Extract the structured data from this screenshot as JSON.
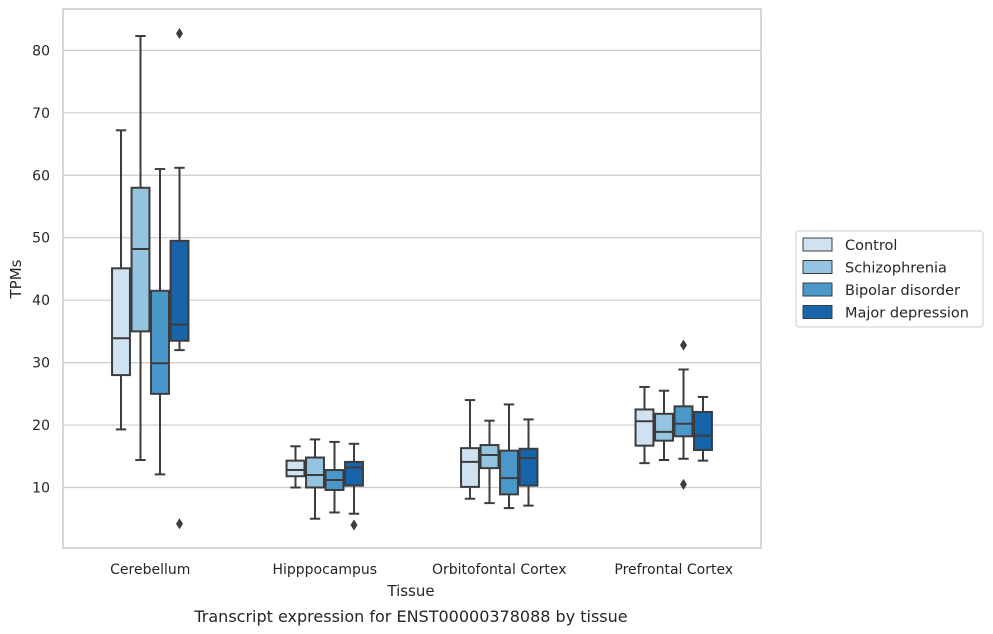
{
  "chart_data": {
    "type": "boxplot",
    "title": "",
    "xlabel": "Tissue",
    "ylabel": "TPMs",
    "caption": "Transcript expression for ENST00000378088 by tissue",
    "ylim": [
      0,
      86
    ],
    "yticks": [
      10,
      20,
      30,
      40,
      50,
      60,
      70,
      80
    ],
    "grid": true,
    "legend_placement": "right",
    "categories": [
      "Cerebellum",
      "Hipppocampus",
      "Orbitofontal Cortex",
      "Prefrontal Cortex"
    ],
    "series": [
      {
        "name": "Control",
        "color": "#d0e1f2",
        "boxes": [
          {
            "whislo": 19.3,
            "q1": 28.0,
            "med": 33.9,
            "q3": 45.1,
            "whishi": 67.2,
            "fliers": []
          },
          {
            "whislo": 10.0,
            "q1": 11.8,
            "med": 12.8,
            "q3": 14.3,
            "whishi": 16.6,
            "fliers": []
          },
          {
            "whislo": 8.2,
            "q1": 10.1,
            "med": 14.1,
            "q3": 16.3,
            "whishi": 24.0,
            "fliers": []
          },
          {
            "whislo": 13.9,
            "q1": 16.7,
            "med": 20.6,
            "q3": 22.5,
            "whishi": 26.1,
            "fliers": []
          }
        ]
      },
      {
        "name": "Schizophrenia",
        "color": "#94c4df",
        "boxes": [
          {
            "whislo": 14.4,
            "q1": 35.0,
            "med": 48.2,
            "q3": 58.0,
            "whishi": 82.3,
            "fliers": []
          },
          {
            "whislo": 5.0,
            "q1": 10.0,
            "med": 12.0,
            "q3": 14.8,
            "whishi": 17.7,
            "fliers": []
          },
          {
            "whislo": 7.5,
            "q1": 13.1,
            "med": 15.2,
            "q3": 16.8,
            "whishi": 20.7,
            "fliers": []
          },
          {
            "whislo": 14.4,
            "q1": 17.5,
            "med": 18.9,
            "q3": 21.8,
            "whishi": 25.5,
            "fliers": []
          }
        ]
      },
      {
        "name": "Bipolar disorder",
        "color": "#4a98c9",
        "boxes": [
          {
            "whislo": 12.1,
            "q1": 25.0,
            "med": 29.9,
            "q3": 41.5,
            "whishi": 61.0,
            "fliers": []
          },
          {
            "whislo": 6.0,
            "q1": 9.6,
            "med": 11.2,
            "q3": 12.8,
            "whishi": 17.3,
            "fliers": []
          },
          {
            "whislo": 6.7,
            "q1": 8.9,
            "med": 11.5,
            "q3": 15.9,
            "whishi": 23.3,
            "fliers": []
          },
          {
            "whislo": 14.6,
            "q1": 18.2,
            "med": 20.2,
            "q3": 23.0,
            "whishi": 28.9,
            "fliers": [
              10.5,
              32.8
            ]
          }
        ]
      },
      {
        "name": "Major depression",
        "color": "#1764ab",
        "boxes": [
          {
            "whislo": 32.0,
            "q1": 33.5,
            "med": 36.1,
            "q3": 49.5,
            "whishi": 61.2,
            "fliers": [
              4.2,
              82.7
            ]
          },
          {
            "whislo": 5.8,
            "q1": 10.3,
            "med": 13.2,
            "q3": 14.1,
            "whishi": 17.0,
            "fliers": [
              4.0
            ]
          },
          {
            "whislo": 7.1,
            "q1": 10.3,
            "med": 14.7,
            "q3": 16.2,
            "whishi": 20.9,
            "fliers": []
          },
          {
            "whislo": 14.3,
            "q1": 16.0,
            "med": 18.3,
            "q3": 22.1,
            "whishi": 24.5,
            "fliers": []
          }
        ]
      }
    ]
  }
}
